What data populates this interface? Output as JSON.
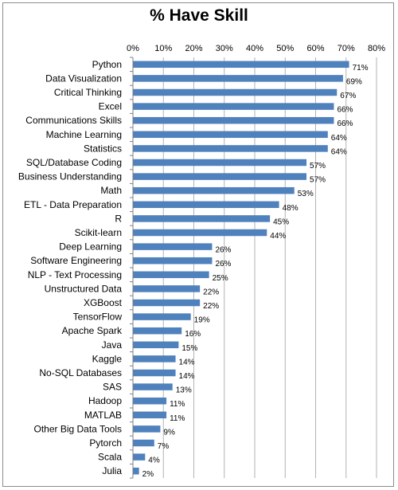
{
  "chart_data": {
    "type": "bar",
    "orientation": "horizontal",
    "title": "% Have Skill",
    "xlabel": "",
    "ylabel": "",
    "xlim": [
      0,
      80
    ],
    "x_ticks": [
      "0%",
      "10%",
      "20%",
      "30%",
      "40%",
      "50%",
      "60%",
      "70%",
      "80%"
    ],
    "x_axis_position": "top",
    "grid": true,
    "legend": "none",
    "bar_color": "#4f81bd",
    "gridline_color": "#b3b3b3",
    "categories": [
      "Python",
      "Data Visualization",
      "Critical Thinking",
      "Excel",
      "Communications Skills",
      "Machine Learning",
      "Statistics",
      "SQL/Database Coding",
      "Business Understanding",
      "Math",
      "ETL - Data Preparation",
      "R",
      "Scikit-learn",
      "Deep Learning",
      "Software Engineering",
      "NLP - Text Processing",
      "Unstructured Data",
      "XGBoost",
      "TensorFlow",
      "Apache Spark",
      "Java",
      "Kaggle",
      "No-SQL Databases",
      "SAS",
      "Hadoop",
      "MATLAB",
      "Other Big Data Tools",
      "Pytorch",
      "Scala",
      "Julia"
    ],
    "values": [
      71,
      69,
      67,
      66,
      66,
      64,
      64,
      57,
      57,
      53,
      48,
      45,
      44,
      26,
      26,
      25,
      22,
      22,
      19,
      16,
      15,
      14,
      14,
      13,
      11,
      11,
      9,
      7,
      4,
      2
    ],
    "data_labels": [
      "71%",
      "69%",
      "67%",
      "66%",
      "66%",
      "64%",
      "64%",
      "57%",
      "57%",
      "53%",
      "48%",
      "45%",
      "44%",
      "26%",
      "26%",
      "25%",
      "22%",
      "22%",
      "19%",
      "16%",
      "15%",
      "14%",
      "14%",
      "13%",
      "11%",
      "11%",
      "9%",
      "7%",
      "4%",
      "2%"
    ]
  }
}
